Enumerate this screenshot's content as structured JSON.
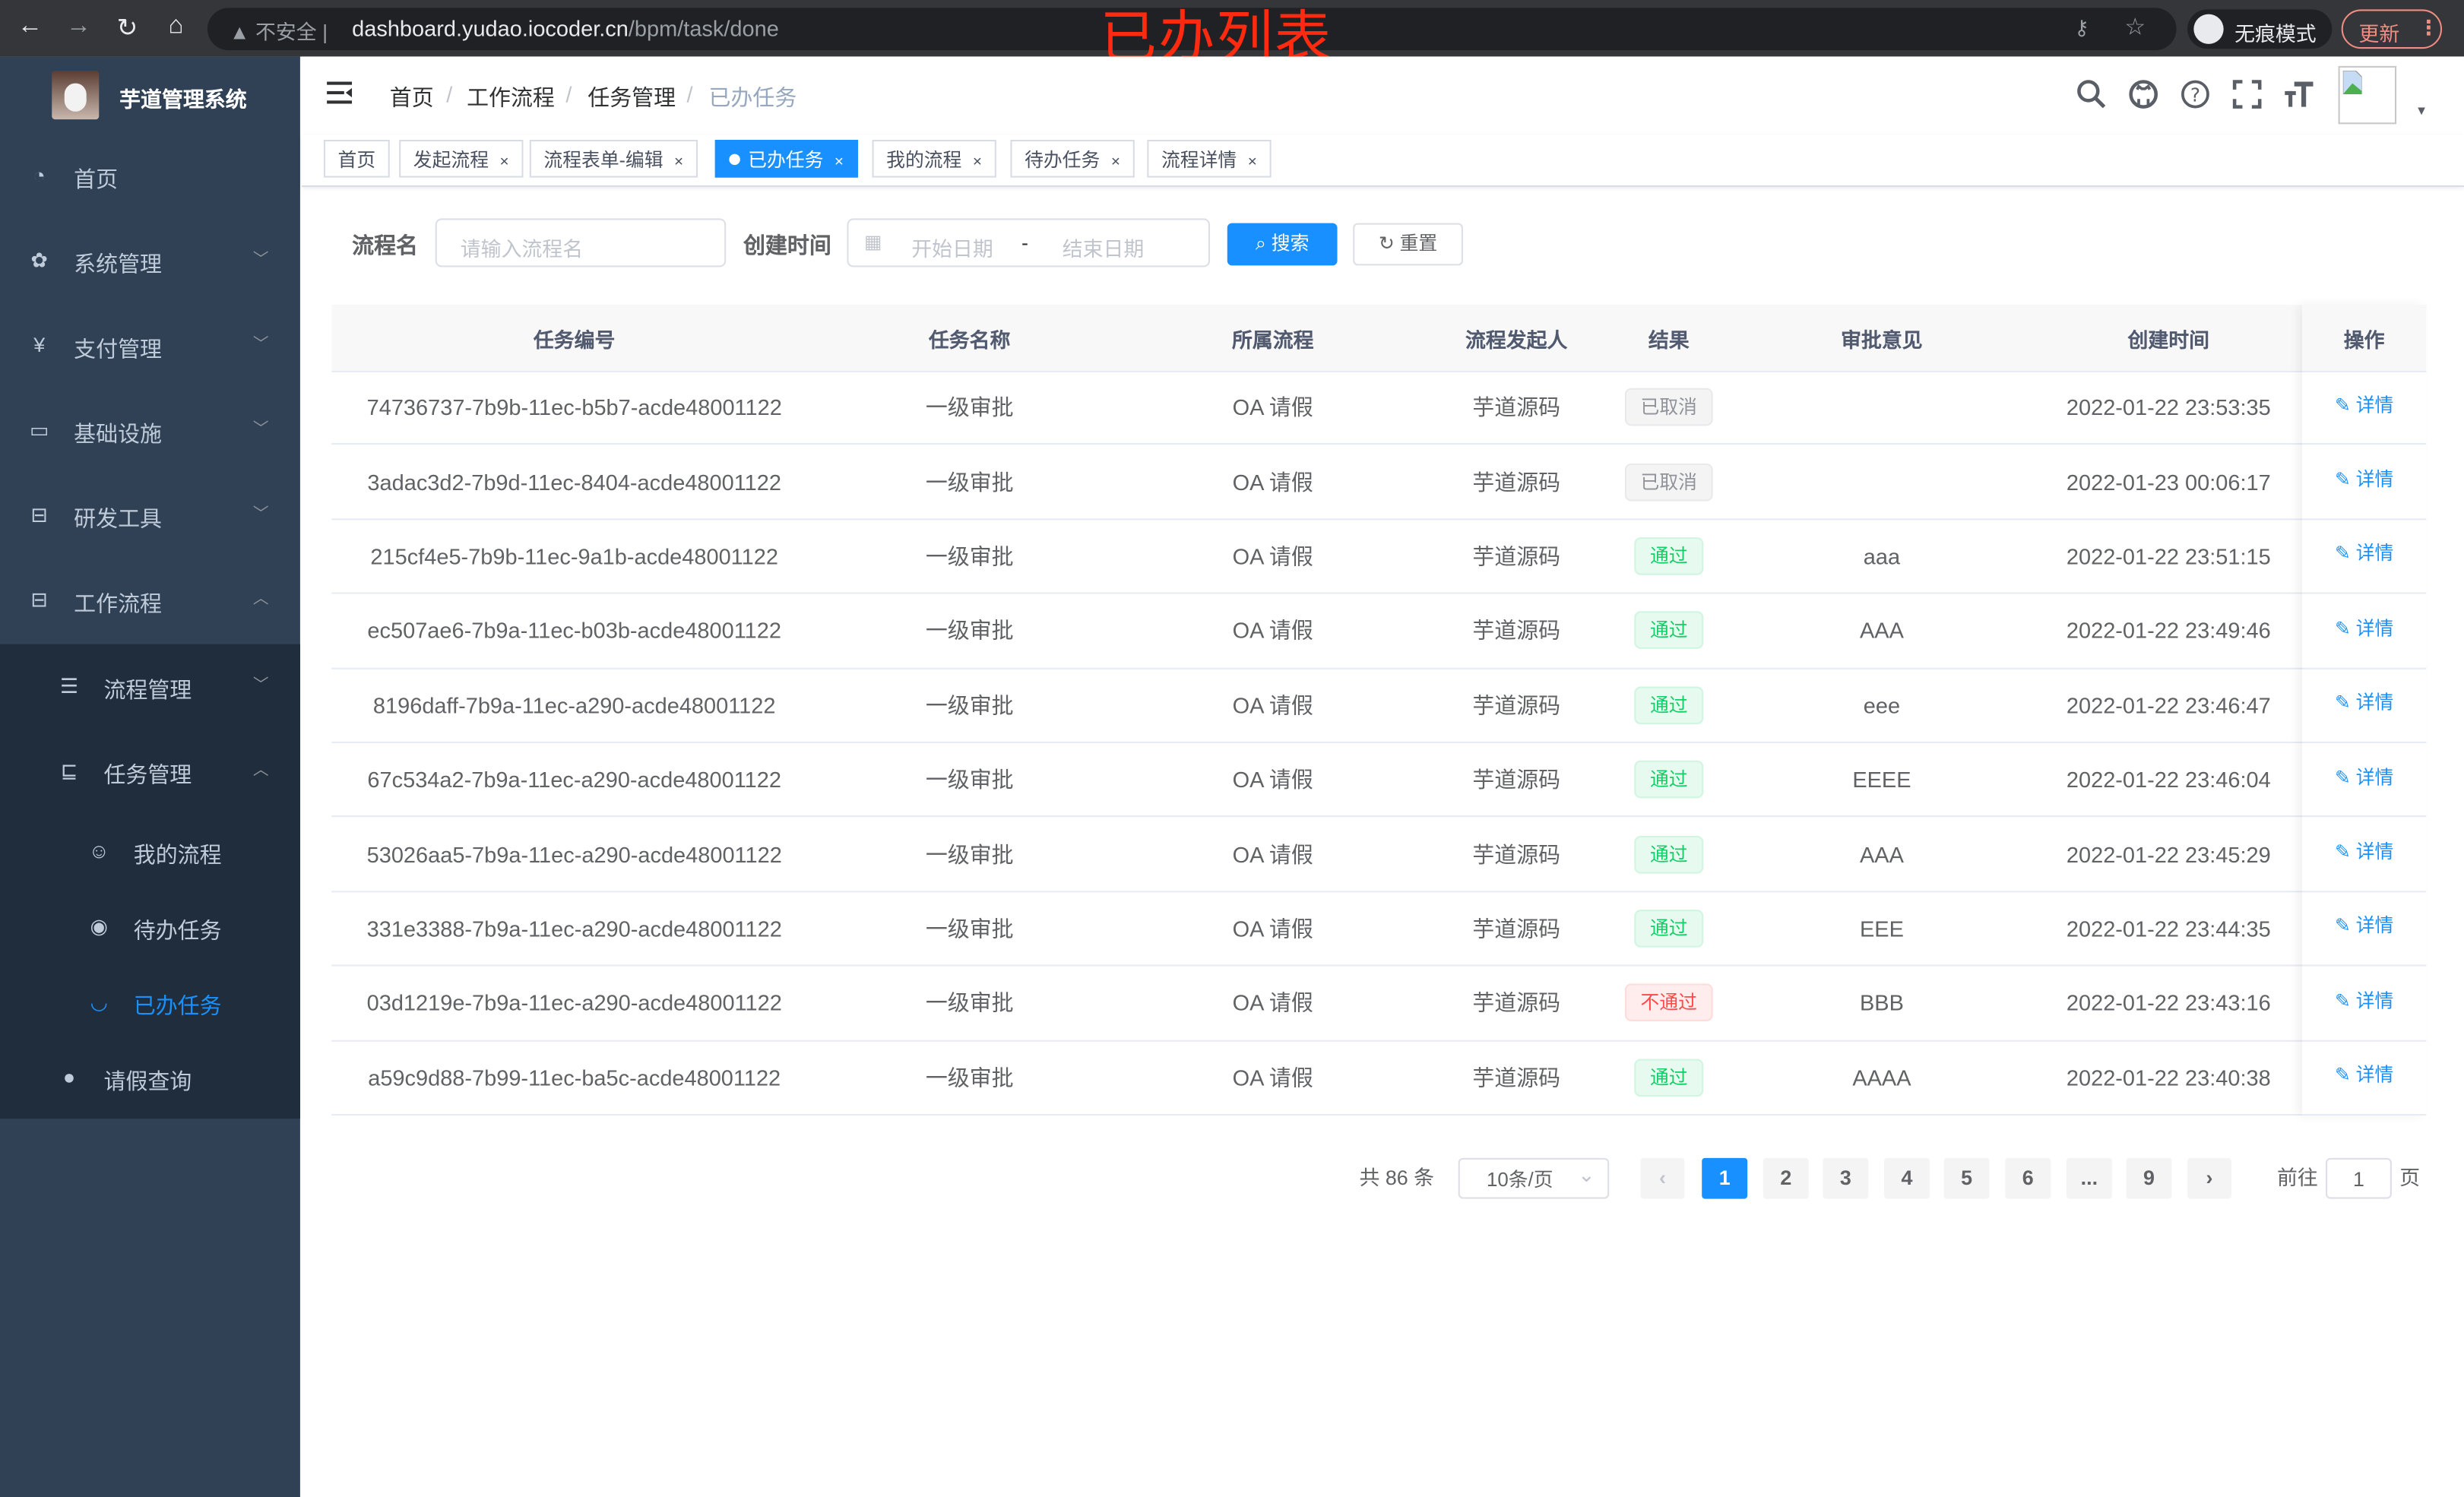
{
  "browser": {
    "insecure_label": "不安全",
    "url_host": "dashboard.yudao.iocoder.cn",
    "url_path": "/bpm/task/done",
    "incognito_label": "无痕模式",
    "update_label": "更新"
  },
  "annotation": "已办列表",
  "sidebar": {
    "app_title": "芋道管理系统",
    "items": [
      {
        "label": "首页",
        "icon": "dashboard-icon"
      },
      {
        "label": "系统管理",
        "icon": "gear-icon"
      },
      {
        "label": "支付管理",
        "icon": "yen-icon"
      },
      {
        "label": "基础设施",
        "icon": "monitor-icon"
      },
      {
        "label": "研发工具",
        "icon": "toolbox-icon"
      },
      {
        "label": "工作流程",
        "icon": "toolbox-icon"
      },
      {
        "label": "流程管理",
        "icon": "list-icon"
      },
      {
        "label": "任务管理",
        "icon": "task-icon"
      },
      {
        "label": "我的流程",
        "icon": "people-icon"
      },
      {
        "label": "待办任务",
        "icon": "eye-open-icon"
      },
      {
        "label": "已办任务",
        "icon": "eye-closed-icon"
      },
      {
        "label": "请假查询",
        "icon": "user-icon"
      }
    ],
    "active_color": "#1890ff"
  },
  "breadcrumb": [
    "首页",
    "工作流程",
    "任务管理",
    "已办任务"
  ],
  "tags": [
    {
      "label": "首页",
      "closable": false
    },
    {
      "label": "发起流程",
      "closable": true
    },
    {
      "label": "流程表单-编辑",
      "closable": true
    },
    {
      "label": "已办任务",
      "closable": true,
      "active": true
    },
    {
      "label": "我的流程",
      "closable": true
    },
    {
      "label": "待办任务",
      "closable": true
    },
    {
      "label": "流程详情",
      "closable": true
    }
  ],
  "filter": {
    "name_label": "流程名",
    "name_placeholder": "请输入流程名",
    "time_label": "创建时间",
    "start_placeholder": "开始日期",
    "range_sep": "-",
    "end_placeholder": "结束日期",
    "search_label": "搜索",
    "reset_label": "重置"
  },
  "table": {
    "columns": [
      "任务编号",
      "任务名称",
      "所属流程",
      "流程发起人",
      "结果",
      "审批意见",
      "创建时间",
      "操作"
    ],
    "action_label": "详情",
    "rows": [
      {
        "id": "74736737-7b9b-11ec-b5b7-acde48001122",
        "name": "一级审批",
        "process": "OA 请假",
        "starter": "芋道源码",
        "result": "已取消",
        "result_type": "info",
        "comment": "",
        "time": "2022-01-22 23:53:35"
      },
      {
        "id": "3adac3d2-7b9d-11ec-8404-acde48001122",
        "name": "一级审批",
        "process": "OA 请假",
        "starter": "芋道源码",
        "result": "已取消",
        "result_type": "info",
        "comment": "",
        "time": "2022-01-23 00:06:17"
      },
      {
        "id": "215cf4e5-7b9b-11ec-9a1b-acde48001122",
        "name": "一级审批",
        "process": "OA 请假",
        "starter": "芋道源码",
        "result": "通过",
        "result_type": "success",
        "comment": "aaa",
        "time": "2022-01-22 23:51:15"
      },
      {
        "id": "ec507ae6-7b9a-11ec-b03b-acde48001122",
        "name": "一级审批",
        "process": "OA 请假",
        "starter": "芋道源码",
        "result": "通过",
        "result_type": "success",
        "comment": "AAA",
        "time": "2022-01-22 23:49:46"
      },
      {
        "id": "8196daff-7b9a-11ec-a290-acde48001122",
        "name": "一级审批",
        "process": "OA 请假",
        "starter": "芋道源码",
        "result": "通过",
        "result_type": "success",
        "comment": "eee",
        "time": "2022-01-22 23:46:47"
      },
      {
        "id": "67c534a2-7b9a-11ec-a290-acde48001122",
        "name": "一级审批",
        "process": "OA 请假",
        "starter": "芋道源码",
        "result": "通过",
        "result_type": "success",
        "comment": "EEEE",
        "time": "2022-01-22 23:46:04"
      },
      {
        "id": "53026aa5-7b9a-11ec-a290-acde48001122",
        "name": "一级审批",
        "process": "OA 请假",
        "starter": "芋道源码",
        "result": "通过",
        "result_type": "success",
        "comment": "AAA",
        "time": "2022-01-22 23:45:29"
      },
      {
        "id": "331e3388-7b9a-11ec-a290-acde48001122",
        "name": "一级审批",
        "process": "OA 请假",
        "starter": "芋道源码",
        "result": "通过",
        "result_type": "success",
        "comment": "EEE",
        "time": "2022-01-22 23:44:35"
      },
      {
        "id": "03d1219e-7b9a-11ec-a290-acde48001122",
        "name": "一级审批",
        "process": "OA 请假",
        "starter": "芋道源码",
        "result": "不通过",
        "result_type": "danger",
        "comment": "BBB",
        "time": "2022-01-22 23:43:16"
      },
      {
        "id": "a59c9d88-7b99-11ec-ba5c-acde48001122",
        "name": "一级审批",
        "process": "OA 请假",
        "starter": "芋道源码",
        "result": "通过",
        "result_type": "success",
        "comment": "AAAA",
        "time": "2022-01-22 23:40:38"
      }
    ]
  },
  "status_colors": {
    "info": {
      "fg": "#909399",
      "bg": "#f4f4f5",
      "border": "#e9e9eb"
    },
    "success": {
      "fg": "#13ce66",
      "bg": "#e7faf0",
      "border": "#d0f5e0"
    },
    "danger": {
      "fg": "#ff4949",
      "bg": "#ffeded",
      "border": "#ffdbdb"
    }
  },
  "pagination": {
    "total_label": "共 86 条",
    "page_size": "10条/页",
    "pages": [
      "1",
      "2",
      "3",
      "4",
      "5",
      "6",
      "...",
      "9"
    ],
    "current": "1",
    "goto_label": "前往",
    "goto_value": "1",
    "page_suffix": "页"
  }
}
